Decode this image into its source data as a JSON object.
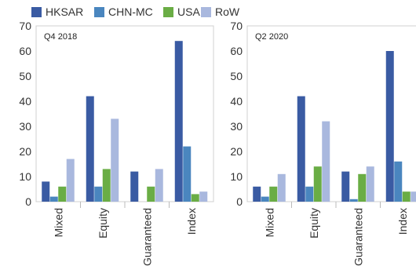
{
  "chart_data": [
    {
      "type": "bar",
      "title": "Q4 2018",
      "categories": [
        "Mixed",
        "Equity",
        "Guaranteed",
        "Index"
      ],
      "series": [
        {
          "name": "HKSAR",
          "values": [
            8,
            42,
            12,
            64
          ]
        },
        {
          "name": "CHN-MC",
          "values": [
            2,
            6,
            0,
            22
          ]
        },
        {
          "name": "USA",
          "values": [
            6,
            13,
            6,
            3
          ]
        },
        {
          "name": "RoW",
          "values": [
            17,
            33,
            13,
            4
          ]
        }
      ],
      "ylim": [
        0,
        70
      ],
      "yticks": [
        0,
        10,
        20,
        30,
        40,
        50,
        60,
        70
      ],
      "grid": false,
      "legend": "top"
    },
    {
      "type": "bar",
      "title": "Q2 2020",
      "categories": [
        "Mixed",
        "Equity",
        "Guaranteed",
        "Index"
      ],
      "series": [
        {
          "name": "HKSAR",
          "values": [
            6,
            42,
            12,
            60
          ]
        },
        {
          "name": "CHN-MC",
          "values": [
            2,
            6,
            1,
            16
          ]
        },
        {
          "name": "USA",
          "values": [
            6,
            14,
            11,
            4
          ]
        },
        {
          "name": "RoW",
          "values": [
            11,
            32,
            14,
            4
          ]
        }
      ],
      "ylim": [
        0,
        70
      ],
      "yticks": [
        0,
        10,
        20,
        30,
        40,
        50,
        60,
        70
      ],
      "grid": false,
      "legend": "top"
    }
  ],
  "legend": [
    "HKSAR",
    "CHN-MC",
    "USA",
    "RoW"
  ],
  "colors": {
    "HKSAR": "#3a5ba3",
    "CHN-MC": "#4a86bf",
    "USA": "#6aad45",
    "RoW": "#a9b8de"
  }
}
